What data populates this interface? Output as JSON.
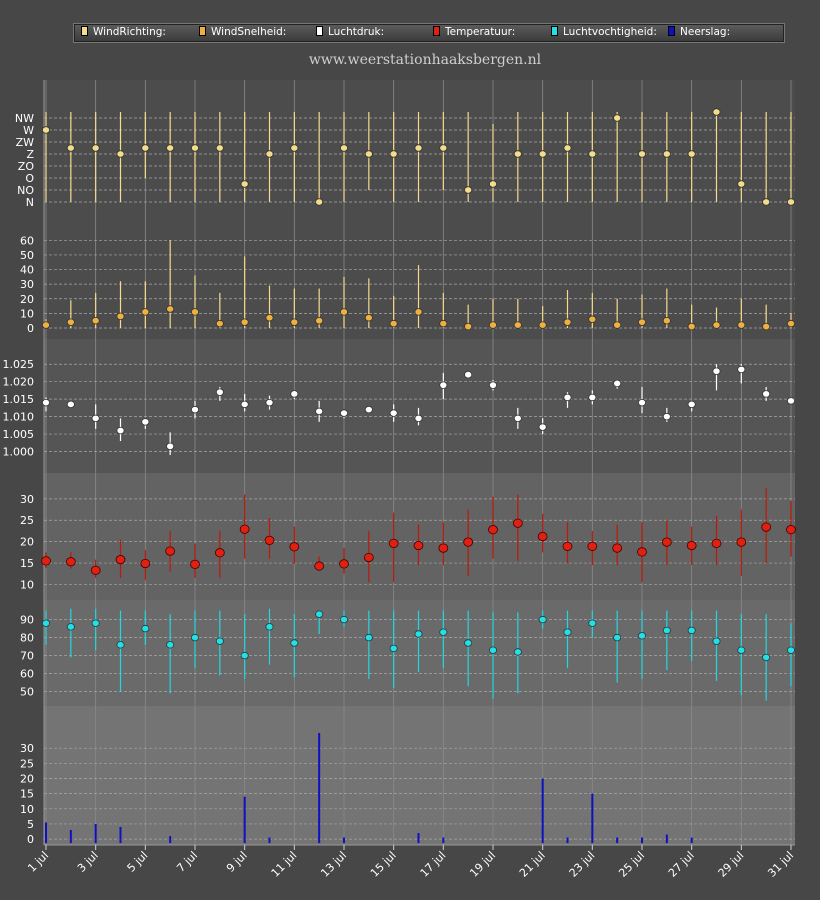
{
  "site_url": "www.weerstationhaaksbergen.nl",
  "legend": [
    {
      "label": "WindRichting:",
      "color": "#f5dc8c"
    },
    {
      "label": "WindSnelheid:",
      "color": "#f0b040"
    },
    {
      "label": "Luchtdruk:",
      "color": "#ffffff"
    },
    {
      "label": "Temperatuur:",
      "color": "#e02010"
    },
    {
      "label": "Luchtvochtigheid:",
      "color": "#20e0e8"
    },
    {
      "label": "Neerslag:",
      "color": "#1010c0"
    }
  ],
  "chart_data": {
    "type": "multi-panel",
    "x_labels": [
      "1 jul",
      "3 jul",
      "5 jul",
      "7 jul",
      "9 jul",
      "11 jul",
      "13 jul",
      "15 jul",
      "17 jul",
      "19 jul",
      "21 jul",
      "23 jul",
      "25 jul",
      "27 jul",
      "29 jul",
      "31 jul"
    ],
    "days": [
      1,
      2,
      3,
      4,
      5,
      6,
      7,
      8,
      9,
      10,
      11,
      12,
      13,
      14,
      15,
      16,
      17,
      18,
      19,
      20,
      21,
      22,
      23,
      24,
      25,
      26,
      27,
      28,
      29,
      30,
      31
    ],
    "panels": [
      {
        "name": "WindRichting",
        "color": "#f5dc8c",
        "range_color": "#f5dc8c",
        "tick_labels": [
          "N",
          "NO",
          "O",
          "ZO",
          "Z",
          "ZW",
          "W",
          "NW"
        ],
        "ylim": [
          0,
          7.5
        ],
        "values": [
          6,
          4.5,
          4.5,
          4,
          4.5,
          4.5,
          4.5,
          4.5,
          1.5,
          4,
          4.5,
          0,
          4.5,
          4,
          4,
          4.5,
          4.5,
          1,
          1.5,
          4,
          4,
          4.5,
          4,
          7,
          4,
          4,
          4,
          7.5,
          1.5,
          0,
          0
        ],
        "low": [
          0,
          0,
          0,
          0,
          2,
          0,
          0,
          0,
          0,
          0,
          0,
          0,
          0,
          1,
          0,
          0,
          1,
          0,
          0,
          0,
          0,
          0,
          0,
          0,
          0,
          0,
          0,
          0,
          0,
          0,
          0
        ],
        "high": [
          7.5,
          7.5,
          7.5,
          7.5,
          7.5,
          7.5,
          7.5,
          7.5,
          7.5,
          7.5,
          7.5,
          7.5,
          7.5,
          7.5,
          7.5,
          7.5,
          7.5,
          7.5,
          6.5,
          7.5,
          7.5,
          7.5,
          7.5,
          7.5,
          7.5,
          7.5,
          7.5,
          7.5,
          7.5,
          7.5,
          7.5
        ]
      },
      {
        "name": "WindSnelheid",
        "color": "#f0b040",
        "range_color": "#f5dc8c",
        "ticks": [
          0,
          10,
          20,
          30,
          40,
          50,
          60
        ],
        "ylim": [
          0,
          65
        ],
        "values": [
          2,
          4,
          5,
          8,
          11,
          13,
          11,
          3,
          4,
          7,
          4,
          5,
          11,
          7,
          3,
          11,
          3,
          1,
          2,
          2,
          2,
          4,
          6,
          2,
          4,
          5,
          1,
          2,
          2,
          1,
          3
        ],
        "low": [
          0,
          0,
          0,
          0,
          0,
          0,
          0,
          0,
          0,
          0,
          0,
          0,
          0,
          0,
          0,
          0,
          0,
          0,
          0,
          0,
          0,
          0,
          0,
          0,
          0,
          0,
          0,
          0,
          0,
          0,
          0
        ],
        "high": [
          6,
          19,
          24,
          32,
          32,
          60,
          36,
          24,
          49,
          29,
          27,
          27,
          35,
          34,
          22,
          43,
          24,
          16,
          20,
          20,
          15,
          26,
          24,
          20,
          23,
          27,
          16,
          14,
          20,
          16,
          10
        ]
      },
      {
        "name": "Luchtdruk",
        "color": "#ffffff",
        "range_color": "#ffffff",
        "ticks": [
          1.0,
          1.005,
          1.01,
          1.015,
          1.02,
          1.025
        ],
        "tick_decimals": 3,
        "ylim": [
          0.995,
          1.0285
        ],
        "values": [
          1.014,
          1.0135,
          1.0095,
          1.006,
          1.0085,
          1.0015,
          1.012,
          1.017,
          1.0135,
          1.014,
          1.0165,
          1.0115,
          1.011,
          1.012,
          1.011,
          1.0095,
          1.019,
          1.022,
          1.019,
          1.0095,
          1.007,
          1.0155,
          1.0155,
          1.0195,
          1.014,
          1.01,
          1.0135,
          1.023,
          1.0235,
          1.0165,
          1.0145
        ],
        "low": [
          1.0115,
          1.0125,
          1.0065,
          1.003,
          1.0065,
          0.999,
          1.0095,
          1.0145,
          1.0115,
          1.012,
          1.015,
          1.0085,
          1.0095,
          1.011,
          1.0085,
          1.0075,
          1.015,
          1.021,
          1.0175,
          1.0065,
          1.005,
          1.0125,
          1.0135,
          1.018,
          1.011,
          1.0085,
          1.0115,
          1.0175,
          1.0195,
          1.0145,
          1.0135
        ],
        "high": [
          1.0155,
          1.0145,
          1.0135,
          1.0095,
          1.0095,
          1.0055,
          1.0145,
          1.0185,
          1.0165,
          1.016,
          1.0175,
          1.0145,
          1.012,
          1.0125,
          1.0135,
          1.0125,
          1.0225,
          1.0225,
          1.0205,
          1.0125,
          1.0095,
          1.017,
          1.0175,
          1.0205,
          1.0185,
          1.0125,
          1.0145,
          1.025,
          1.025,
          1.0185,
          1.0155
        ]
      },
      {
        "name": "Temperatuur",
        "color": "#e02010",
        "range_color": "#c01808",
        "ticks": [
          10,
          15,
          20,
          25,
          30
        ],
        "ylim": [
          8,
          33
        ],
        "values": [
          15.5,
          15.3,
          13.3,
          15.8,
          14.9,
          17.8,
          14.7,
          17.4,
          22.9,
          20.3,
          18.8,
          14.3,
          14.8,
          16.3,
          19.6,
          19.1,
          18.5,
          19.9,
          22.8,
          24.3,
          21.2,
          18.9,
          18.9,
          18.5,
          17.6,
          19.9,
          19.1,
          19.6,
          19.9,
          23.4,
          22.8
        ],
        "low": [
          13.8,
          13.7,
          11.5,
          11.5,
          11.0,
          13.0,
          11.5,
          11.5,
          16.0,
          16.0,
          14.8,
          13.5,
          12.5,
          10.5,
          10.5,
          14.5,
          14.5,
          12.0,
          16.0,
          15.5,
          17.5,
          15.0,
          14.5,
          14.5,
          10.5,
          14.5,
          14.5,
          14.5,
          12.0,
          15.0,
          16.5
        ],
        "high": [
          17.5,
          17.5,
          15.8,
          20.5,
          18.0,
          22.5,
          19.5,
          22.5,
          31.0,
          25.5,
          23.5,
          16.5,
          18.5,
          22.5,
          26.8,
          24.0,
          24.5,
          27.5,
          30.5,
          31.0,
          26.5,
          24.5,
          22.5,
          24.0,
          24.5,
          25.0,
          23.5,
          26.0,
          27.5,
          32.5,
          29.5
        ]
      },
      {
        "name": "Luchtvochtigheid",
        "color": "#20e0e8",
        "range_color": "#20d8e0",
        "ticks": [
          50,
          60,
          70,
          80,
          90
        ],
        "ylim": [
          42,
          97
        ],
        "values": [
          88,
          86,
          88,
          76,
          85,
          76,
          80,
          78,
          70,
          86,
          77,
          93,
          90,
          80,
          74,
          82,
          83,
          77,
          73,
          72,
          90,
          83,
          88,
          80,
          81,
          84,
          84,
          78,
          73,
          69,
          73
        ],
        "low": [
          76,
          69,
          73,
          50,
          76,
          49,
          63,
          59,
          57,
          65,
          58,
          82,
          86,
          57,
          52,
          61,
          63,
          53,
          46,
          49,
          85,
          63,
          80,
          55,
          57,
          62,
          67,
          56,
          48,
          45,
          53
        ],
        "high": [
          95,
          96,
          96,
          95,
          95,
          93,
          95,
          95,
          93,
          96,
          93,
          95,
          95,
          95,
          95,
          95,
          95,
          95,
          94,
          94,
          95,
          95,
          95,
          95,
          95,
          95,
          95,
          95,
          93,
          93,
          88
        ]
      },
      {
        "name": "Neerslag",
        "color": "#1010c0",
        "type": "bar",
        "ticks": [
          0,
          5,
          10,
          15,
          20,
          25,
          30
        ],
        "ylim": [
          -0.3,
          36
        ],
        "values": [
          5.5,
          3,
          5,
          4,
          0,
          1,
          0,
          0,
          14,
          0.5,
          0,
          35,
          0.5,
          0,
          0,
          2,
          0.5,
          0,
          0,
          0,
          20,
          0.5,
          15,
          0.5,
          0.5,
          1.5,
          0.5,
          0,
          0,
          0,
          0
        ]
      }
    ]
  }
}
